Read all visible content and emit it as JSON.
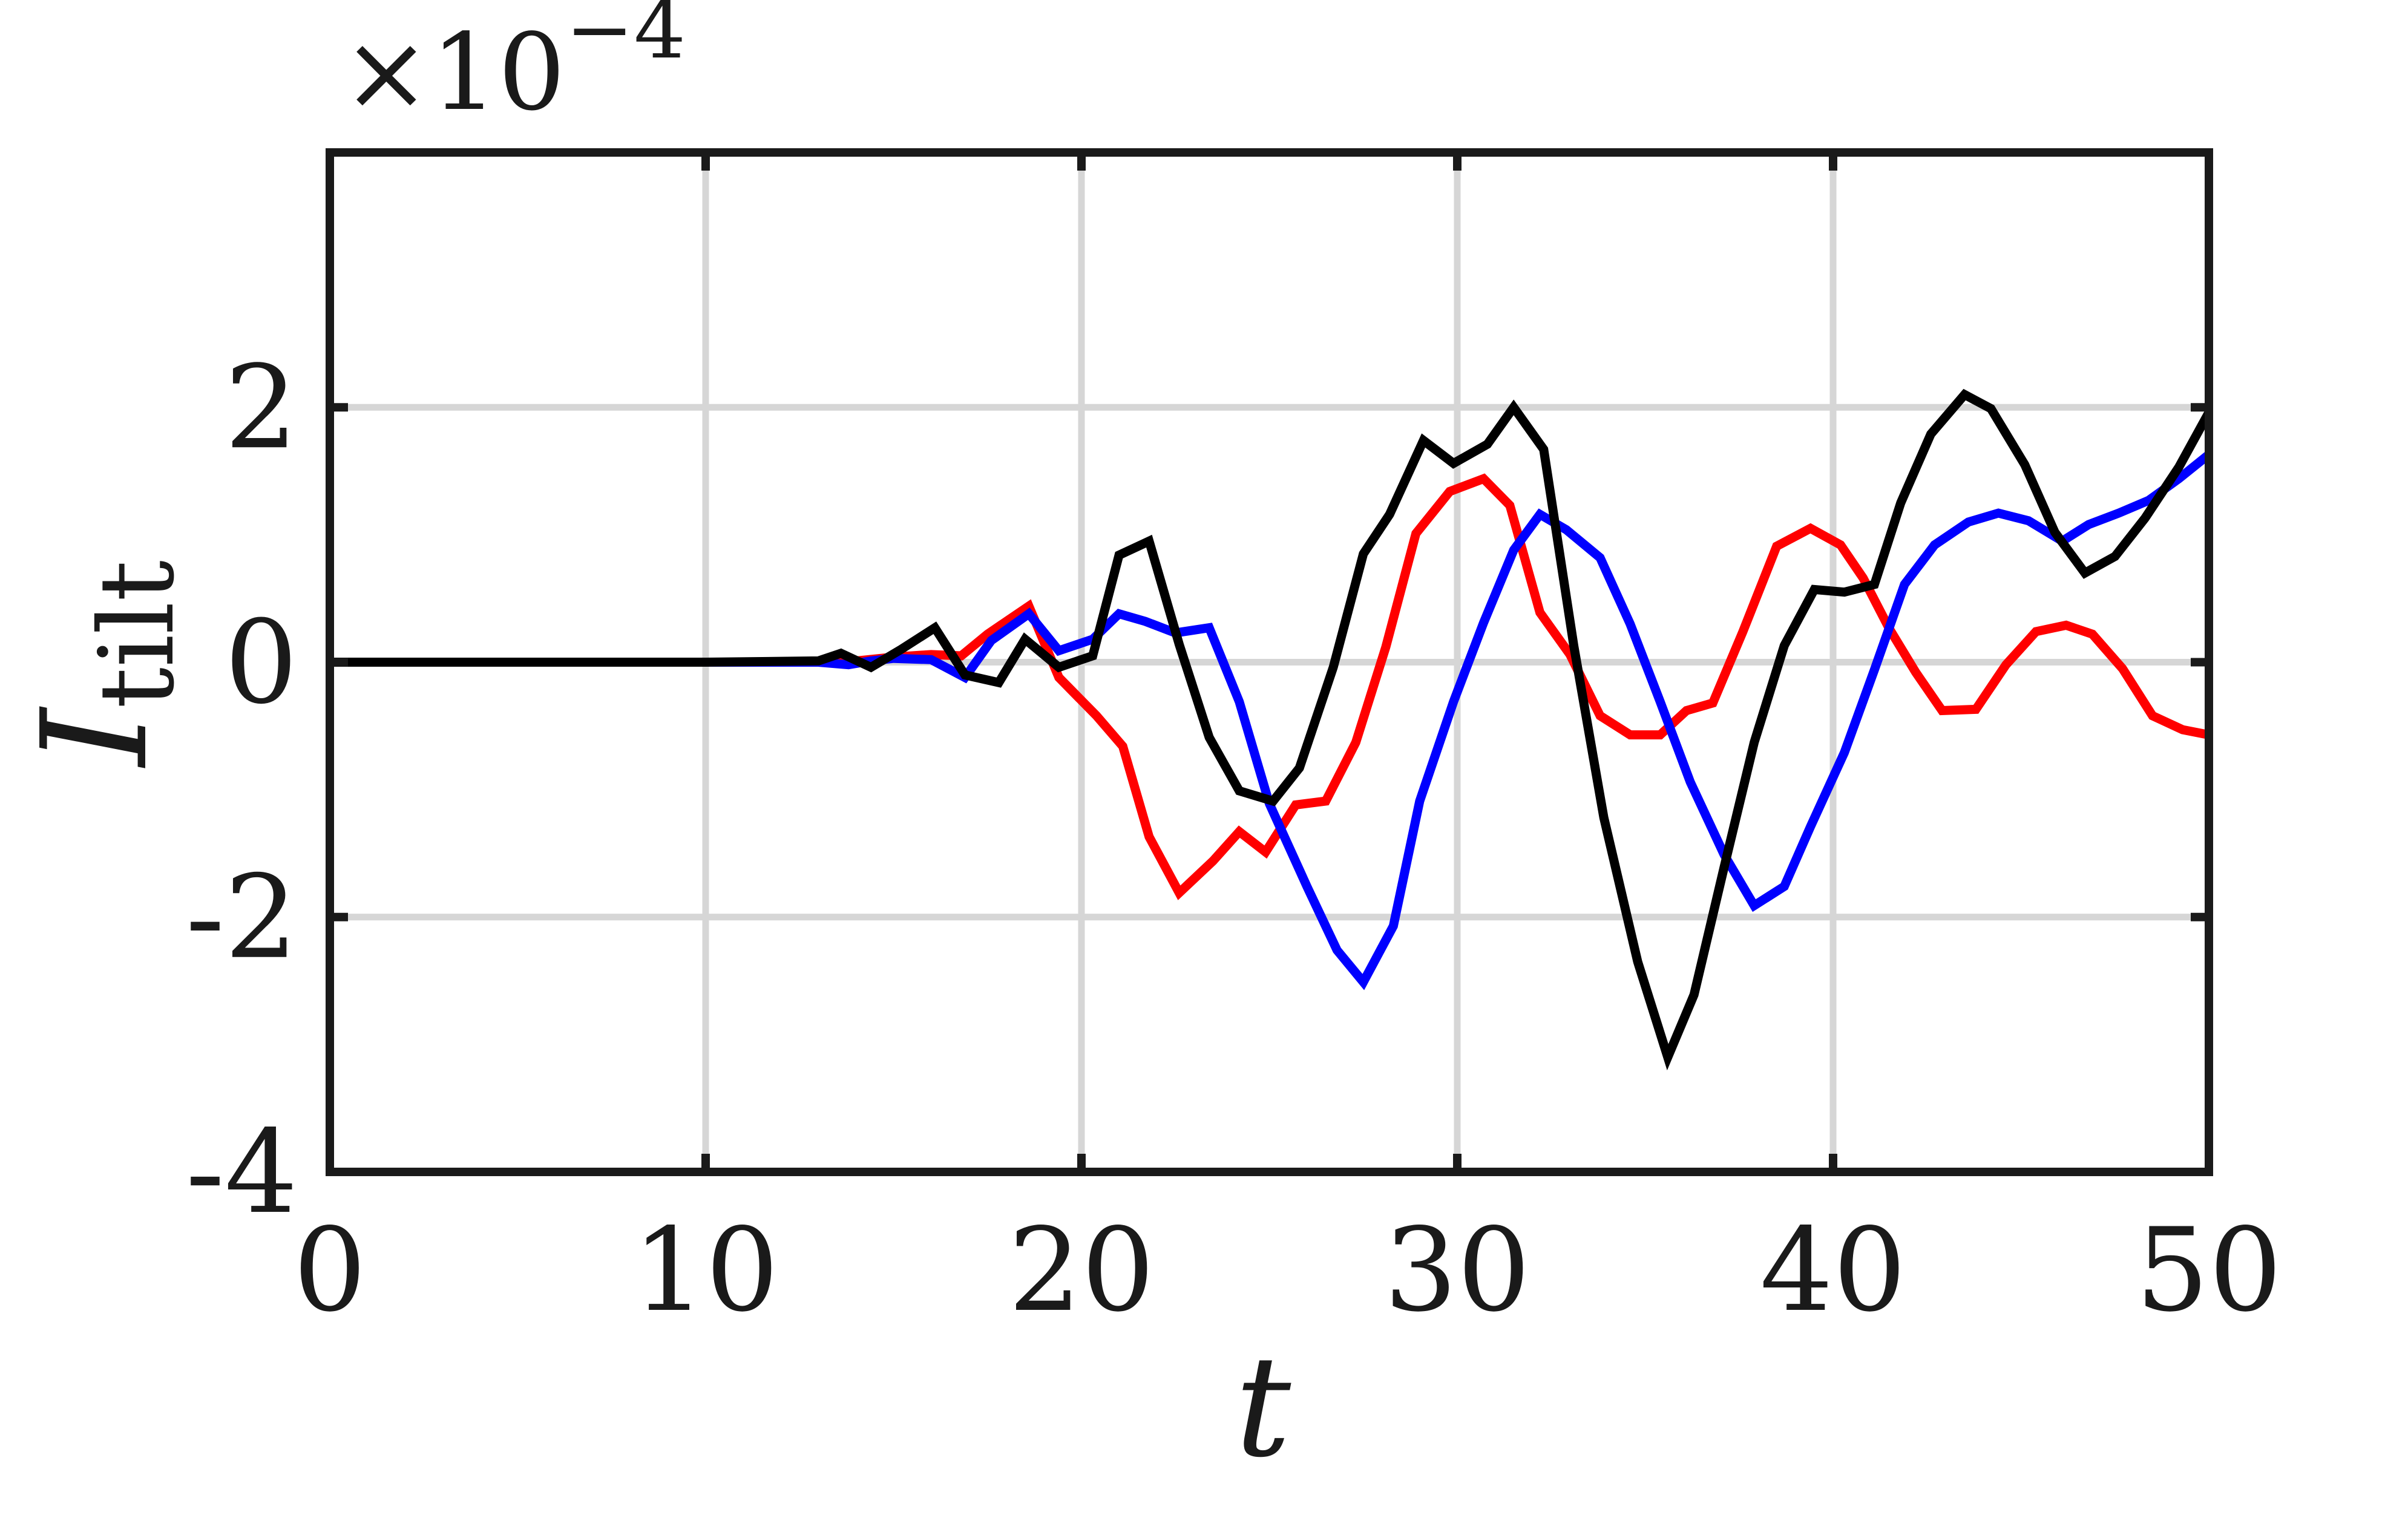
{
  "chart_data": {
    "type": "line",
    "title": "",
    "xlabel": "t",
    "ylabel": {
      "main": "I",
      "subscript": "tilt"
    },
    "y_scale_note": {
      "prefix": "×10",
      "exponent": "−4"
    },
    "xlim": [
      0,
      50
    ],
    "ylim": [
      -4,
      4
    ],
    "x_ticks": [
      0,
      10,
      20,
      30,
      40,
      50
    ],
    "x_tick_labels": [
      "0",
      "10",
      "20",
      "30",
      "40",
      "50"
    ],
    "y_ticks": [
      -4,
      -2,
      0,
      2
    ],
    "y_tick_labels": [
      "-4",
      "-2",
      "0",
      "2"
    ],
    "grid": true,
    "legend": "none",
    "series": [
      {
        "color": "#ff0000",
        "points": [
          [
            0,
            0
          ],
          [
            5,
            0
          ],
          [
            10,
            0
          ],
          [
            13,
            0
          ],
          [
            14,
            0.01
          ],
          [
            15,
            0.04
          ],
          [
            16,
            0.06
          ],
          [
            16.8,
            0.05
          ],
          [
            17.5,
            0.22
          ],
          [
            18.6,
            0.44
          ],
          [
            19.4,
            -0.12
          ],
          [
            20.4,
            -0.42
          ],
          [
            21.1,
            -0.66
          ],
          [
            21.8,
            -1.37
          ],
          [
            22.6,
            -1.81
          ],
          [
            23.5,
            -1.56
          ],
          [
            24.2,
            -1.33
          ],
          [
            24.9,
            -1.49
          ],
          [
            25.7,
            -1.12
          ],
          [
            26.5,
            -1.09
          ],
          [
            27.3,
            -0.63
          ],
          [
            28.1,
            0.12
          ],
          [
            28.9,
            1.01
          ],
          [
            29.8,
            1.34
          ],
          [
            30.7,
            1.44
          ],
          [
            31.4,
            1.23
          ],
          [
            32.2,
            0.39
          ],
          [
            33,
            0.06
          ],
          [
            33.8,
            -0.42
          ],
          [
            34.6,
            -0.57
          ],
          [
            35.4,
            -0.57
          ],
          [
            36.1,
            -0.38
          ],
          [
            36.8,
            -0.32
          ],
          [
            37.6,
            0.24
          ],
          [
            38.5,
            0.91
          ],
          [
            39.4,
            1.05
          ],
          [
            40.2,
            0.92
          ],
          [
            40.8,
            0.66
          ],
          [
            41.5,
            0.26
          ],
          [
            42.2,
            -0.08
          ],
          [
            42.9,
            -0.38
          ],
          [
            43.8,
            -0.37
          ],
          [
            44.6,
            -0.02
          ],
          [
            45.4,
            0.24
          ],
          [
            46.2,
            0.29
          ],
          [
            46.9,
            0.22
          ],
          [
            47.7,
            -0.05
          ],
          [
            48.5,
            -0.42
          ],
          [
            49.3,
            -0.53
          ],
          [
            50,
            -0.57
          ]
        ]
      },
      {
        "color": "#0000ff",
        "points": [
          [
            0,
            0
          ],
          [
            5,
            0
          ],
          [
            10,
            0
          ],
          [
            13,
            0
          ],
          [
            13.8,
            -0.02
          ],
          [
            14.4,
            0.01
          ],
          [
            15,
            0.03
          ],
          [
            16,
            0.02
          ],
          [
            16.9,
            -0.12
          ],
          [
            17.6,
            0.17
          ],
          [
            18.6,
            0.38
          ],
          [
            19.4,
            0.09
          ],
          [
            20.3,
            0.18
          ],
          [
            21,
            0.38
          ],
          [
            21.7,
            0.32
          ],
          [
            22.5,
            0.23
          ],
          [
            23.4,
            0.27
          ],
          [
            24.2,
            -0.31
          ],
          [
            25,
            -1.11
          ],
          [
            26,
            -1.76
          ],
          [
            26.8,
            -2.26
          ],
          [
            27.5,
            -2.51
          ],
          [
            28.3,
            -2.07
          ],
          [
            29,
            -1.09
          ],
          [
            29.9,
            -0.31
          ],
          [
            30.7,
            0.31
          ],
          [
            31.5,
            0.88
          ],
          [
            32.2,
            1.16
          ],
          [
            32.9,
            1.04
          ],
          [
            33.8,
            0.82
          ],
          [
            34.6,
            0.3
          ],
          [
            35.4,
            -0.31
          ],
          [
            36.2,
            -0.94
          ],
          [
            37.1,
            -1.51
          ],
          [
            37.9,
            -1.91
          ],
          [
            38.7,
            -1.76
          ],
          [
            39.4,
            -1.29
          ],
          [
            40.3,
            -0.71
          ],
          [
            41.1,
            -0.06
          ],
          [
            41.9,
            0.61
          ],
          [
            42.7,
            0.92
          ],
          [
            43.6,
            1.1
          ],
          [
            44.4,
            1.17
          ],
          [
            45.2,
            1.11
          ],
          [
            46.1,
            0.95
          ],
          [
            46.8,
            1.08
          ],
          [
            47.6,
            1.17
          ],
          [
            48.4,
            1.27
          ],
          [
            49.2,
            1.44
          ],
          [
            50,
            1.63
          ]
        ]
      },
      {
        "color": "#000000",
        "points": [
          [
            0,
            0
          ],
          [
            5,
            0
          ],
          [
            10,
            0
          ],
          [
            13,
            0.01
          ],
          [
            13.6,
            0.07
          ],
          [
            14.4,
            -0.04
          ],
          [
            15.2,
            0.1
          ],
          [
            16.1,
            0.27
          ],
          [
            16.9,
            -0.1
          ],
          [
            17.8,
            -0.16
          ],
          [
            18.5,
            0.18
          ],
          [
            19.4,
            -0.04
          ],
          [
            20.3,
            0.05
          ],
          [
            21,
            0.84
          ],
          [
            21.8,
            0.95
          ],
          [
            22.6,
            0.14
          ],
          [
            23.4,
            -0.59
          ],
          [
            24.2,
            -1.01
          ],
          [
            25.1,
            -1.09
          ],
          [
            25.8,
            -0.83
          ],
          [
            26.7,
            -0.04
          ],
          [
            27.5,
            0.85
          ],
          [
            28.2,
            1.16
          ],
          [
            29.1,
            1.74
          ],
          [
            29.9,
            1.56
          ],
          [
            30.8,
            1.71
          ],
          [
            31.5,
            2
          ],
          [
            32.3,
            1.67
          ],
          [
            33.1,
            0.13
          ],
          [
            33.9,
            -1.22
          ],
          [
            34.8,
            -2.35
          ],
          [
            35.6,
            -3.1
          ],
          [
            36.3,
            -2.61
          ],
          [
            37.1,
            -1.61
          ],
          [
            37.9,
            -0.63
          ],
          [
            38.7,
            0.13
          ],
          [
            39.5,
            0.57
          ],
          [
            40.3,
            0.55
          ],
          [
            41.1,
            0.61
          ],
          [
            41.8,
            1.25
          ],
          [
            42.6,
            1.79
          ],
          [
            43.5,
            2.1
          ],
          [
            44.2,
            1.99
          ],
          [
            45.1,
            1.55
          ],
          [
            45.9,
            1.02
          ],
          [
            46.7,
            0.7
          ],
          [
            47.5,
            0.83
          ],
          [
            48.3,
            1.13
          ],
          [
            49.2,
            1.53
          ],
          [
            50,
            1.96
          ]
        ]
      }
    ]
  }
}
